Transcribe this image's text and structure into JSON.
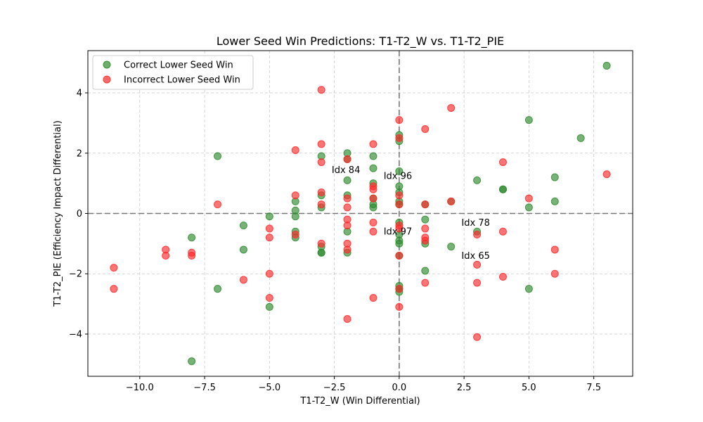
{
  "chart_data": {
    "type": "scatter",
    "title": "Lower Seed Win Predictions: T1-T2_W vs. T1-T2_PIE",
    "xlabel": "T1-T2_W (Win Differential)",
    "ylabel": "T1-T2_PIE (Efficiency Impact Differential)",
    "xlim": [
      -12.0,
      9.0
    ],
    "ylim": [
      -5.4,
      5.4
    ],
    "xticks": [
      -10.0,
      -7.5,
      -5.0,
      -2.5,
      0.0,
      2.5,
      5.0,
      7.5
    ],
    "xtick_labels": [
      "−10.0",
      "−7.5",
      "−5.0",
      "−2.5",
      "0.0",
      "2.5",
      "5.0",
      "7.5"
    ],
    "yticks": [
      -4,
      -2,
      0,
      2,
      4
    ],
    "ytick_labels": [
      "−4",
      "−2",
      "0",
      "2",
      "4"
    ],
    "grid": true,
    "reference_lines": {
      "x": 0,
      "y": 0
    },
    "legend_position": "top-left",
    "series": [
      {
        "name": "Correct Lower Seed Win",
        "color": "#2e8b2e",
        "points": [
          [
            8,
            4.9
          ],
          [
            5,
            3.1
          ],
          [
            7,
            2.5
          ],
          [
            6,
            1.2
          ],
          [
            3,
            1.1
          ],
          [
            4,
            0.8
          ],
          [
            4,
            0.8
          ],
          [
            6,
            0.4
          ],
          [
            5,
            0.2
          ],
          [
            2,
            0.4
          ],
          [
            1,
            0.3
          ],
          [
            1,
            -0.2
          ],
          [
            3,
            -0.6
          ],
          [
            1,
            -1.0
          ],
          [
            2,
            -1.1
          ],
          [
            1,
            -1.9
          ],
          [
            5,
            -2.5
          ],
          [
            0,
            2.6
          ],
          [
            0,
            2.4
          ],
          [
            0,
            1.4
          ],
          [
            0,
            0.9
          ],
          [
            0,
            0.7
          ],
          [
            0,
            0.4
          ],
          [
            0,
            0.3
          ],
          [
            0,
            -0.3
          ],
          [
            0,
            -0.7
          ],
          [
            0,
            -0.9
          ],
          [
            0,
            -1.0
          ],
          [
            0,
            -1.4
          ],
          [
            0,
            -2.4
          ],
          [
            0,
            -2.5
          ],
          [
            0,
            -2.6
          ],
          [
            -1,
            1.9
          ],
          [
            -1,
            1.5
          ],
          [
            -1,
            1.0
          ],
          [
            -1,
            0.5
          ],
          [
            -1,
            0.3
          ],
          [
            -1,
            0.2
          ],
          [
            -2,
            2.0
          ],
          [
            -2,
            1.8
          ],
          [
            -2,
            1.1
          ],
          [
            -2,
            0.6
          ],
          [
            -2,
            -0.6
          ],
          [
            -2,
            -1.3
          ],
          [
            -3,
            1.9
          ],
          [
            -3,
            0.6
          ],
          [
            -3,
            0.2
          ],
          [
            -3,
            -1.1
          ],
          [
            -3,
            -1.3
          ],
          [
            -3,
            -1.3
          ],
          [
            -4,
            0.4
          ],
          [
            -4,
            0.1
          ],
          [
            -4,
            -0.1
          ],
          [
            -4,
            -0.6
          ],
          [
            -4,
            -0.8
          ],
          [
            -5,
            -0.1
          ],
          [
            -5,
            -3.1
          ],
          [
            -6,
            -0.4
          ],
          [
            -6,
            -1.2
          ],
          [
            -7,
            1.9
          ],
          [
            -7,
            -2.5
          ],
          [
            -8,
            -0.8
          ],
          [
            -8,
            -4.9
          ]
        ]
      },
      {
        "name": "Incorrect Lower Seed Win",
        "color": "#ff2a2a",
        "points": [
          [
            8,
            1.3
          ],
          [
            2,
            3.5
          ],
          [
            1,
            2.8
          ],
          [
            4,
            1.7
          ],
          [
            5,
            0.5
          ],
          [
            2,
            0.4
          ],
          [
            1,
            0.3
          ],
          [
            1,
            -0.5
          ],
          [
            1,
            -0.8
          ],
          [
            1,
            -0.9
          ],
          [
            3,
            -0.7
          ],
          [
            4,
            -0.6
          ],
          [
            6,
            -1.2
          ],
          [
            3,
            -1.7
          ],
          [
            4,
            -2.1
          ],
          [
            6,
            -2.0
          ],
          [
            1,
            -2.3
          ],
          [
            3,
            -2.3
          ],
          [
            3,
            -4.1
          ],
          [
            0,
            3.1
          ],
          [
            0,
            2.5
          ],
          [
            0,
            0.6
          ],
          [
            0,
            0.3
          ],
          [
            0,
            -0.4
          ],
          [
            0,
            -0.5
          ],
          [
            0,
            -1.4
          ],
          [
            0,
            -2.5
          ],
          [
            0,
            -3.1
          ],
          [
            -1,
            2.3
          ],
          [
            -1,
            0.9
          ],
          [
            -1,
            0.8
          ],
          [
            -1,
            0.5
          ],
          [
            -1,
            -0.3
          ],
          [
            -1,
            -0.6
          ],
          [
            -1,
            -2.8
          ],
          [
            -2,
            1.8
          ],
          [
            -2,
            0.5
          ],
          [
            -2,
            0.2
          ],
          [
            -2,
            -0.2
          ],
          [
            -2,
            -0.4
          ],
          [
            -2,
            -1.0
          ],
          [
            -2,
            -1.2
          ],
          [
            -2,
            -3.5
          ],
          [
            -3,
            4.1
          ],
          [
            -3,
            2.3
          ],
          [
            -3,
            1.7
          ],
          [
            -3,
            0.7
          ],
          [
            -3,
            0.3
          ],
          [
            -3,
            -1.0
          ],
          [
            -4,
            2.1
          ],
          [
            -4,
            0.6
          ],
          [
            -4,
            -0.7
          ],
          [
            -5,
            -0.5
          ],
          [
            -5,
            -0.8
          ],
          [
            -5,
            -2.0
          ],
          [
            -5,
            -2.8
          ],
          [
            -6,
            -2.2
          ],
          [
            -7,
            0.3
          ],
          [
            -8,
            -1.3
          ],
          [
            -8,
            -1.4
          ],
          [
            -9,
            -1.2
          ],
          [
            -9,
            -1.4
          ],
          [
            -11,
            -1.8
          ],
          [
            -11,
            -2.5
          ]
        ]
      }
    ],
    "annotations": [
      {
        "text": "Idx 84",
        "x": -2.6,
        "y": 1.45
      },
      {
        "text": "Idx 96",
        "x": -0.6,
        "y": 1.25
      },
      {
        "text": "Idx 78",
        "x": 2.4,
        "y": -0.3
      },
      {
        "text": "Idx 97",
        "x": -0.6,
        "y": -0.6
      },
      {
        "text": "Idx 65",
        "x": 2.4,
        "y": -1.4
      }
    ]
  }
}
